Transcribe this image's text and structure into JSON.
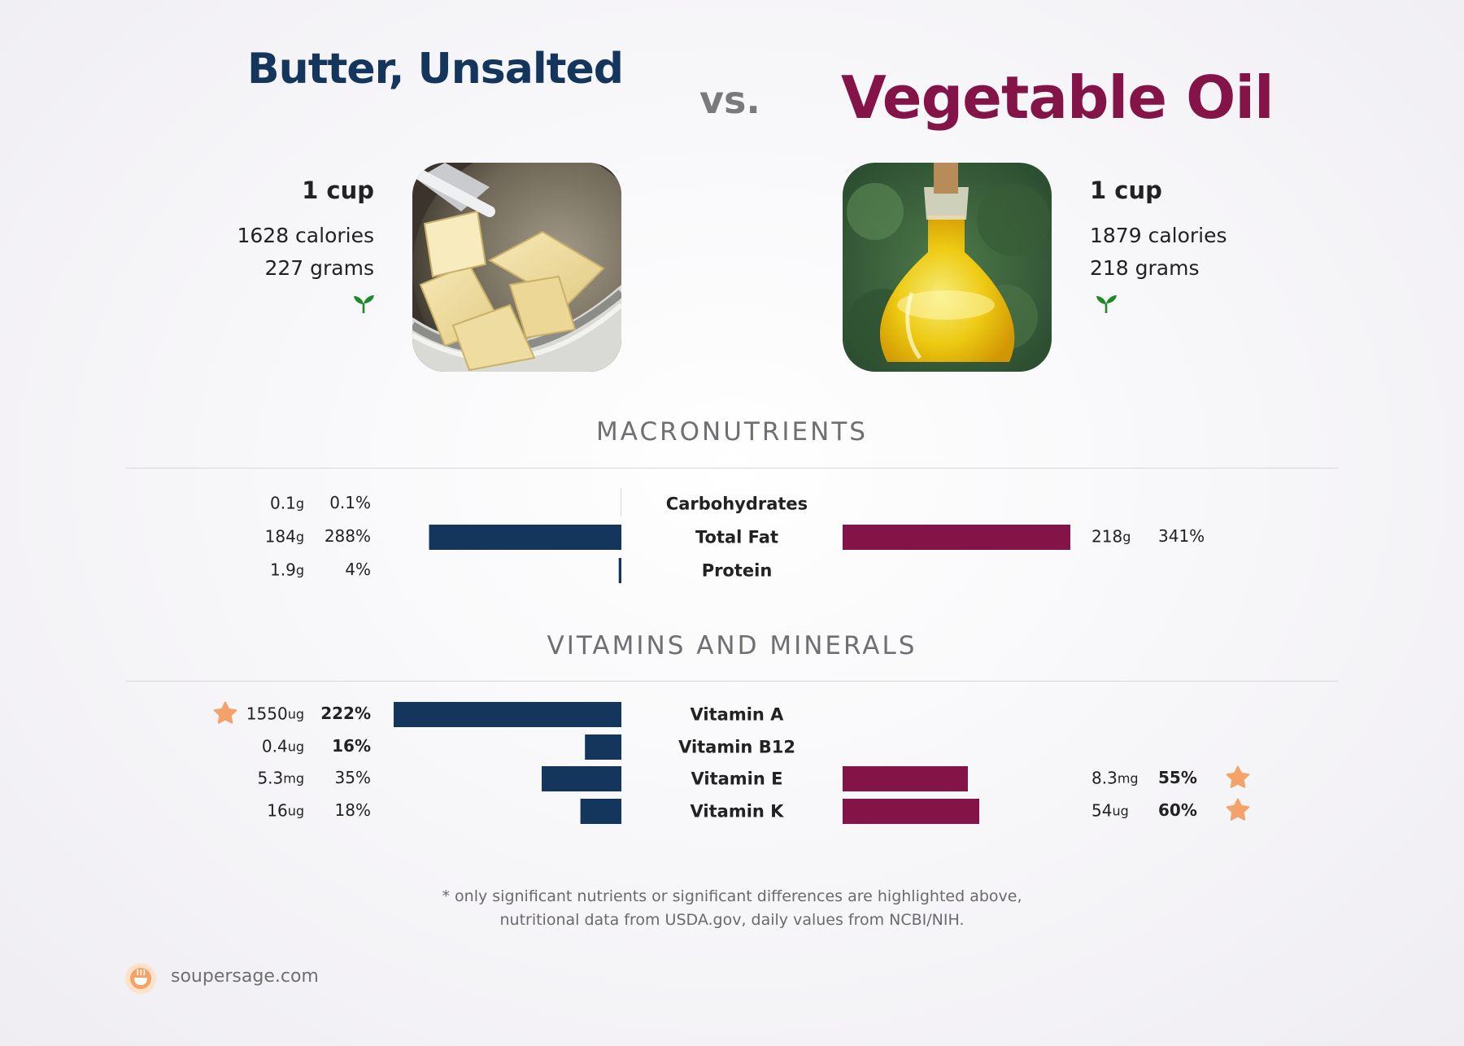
{
  "header": {
    "left_food": "Butter, Unsalted",
    "vs": "vs.",
    "right_food": "Vegetable Oil"
  },
  "left": {
    "serving": "1 cup",
    "calories": "1628 calories",
    "grams": "227 grams",
    "icon": "sprout-icon",
    "photo": "butter-photo"
  },
  "right": {
    "serving": "1 cup",
    "calories": "1879 calories",
    "grams": "218 grams",
    "icon": "sprout-icon",
    "photo": "oil-bottle-photo"
  },
  "sections": {
    "macro": "MACRONUTRIENTS",
    "vitamins": "VITAMINS AND MINERALS"
  },
  "colors": {
    "left": "#14365d",
    "right": "#841448",
    "star": "#f4a26a",
    "leaf": "#1e8a2a"
  },
  "chart_data": [
    {
      "type": "bar",
      "title": "MACRONUTRIENTS",
      "categories": [
        "Carbohydrates",
        "Total Fat",
        "Protein"
      ],
      "series": [
        {
          "name": "Butter, Unsalted",
          "amounts": [
            "0.1",
            "184",
            "1.9"
          ],
          "units": [
            "g",
            "g",
            "g"
          ],
          "percent_labels": [
            "0.1%",
            "288%",
            "4%"
          ],
          "values": [
            0.1,
            288,
            4
          ],
          "bold": [
            false,
            false,
            false
          ],
          "star": [
            false,
            false,
            false
          ]
        },
        {
          "name": "Vegetable Oil",
          "amounts": [
            "",
            "218",
            ""
          ],
          "units": [
            "",
            "g",
            ""
          ],
          "percent_labels": [
            "",
            "341%",
            ""
          ],
          "values": [
            0,
            341,
            0
          ],
          "bold": [
            false,
            false,
            false
          ],
          "star": [
            false,
            false,
            false
          ]
        }
      ],
      "scale_max": 341
    },
    {
      "type": "bar",
      "title": "VITAMINS AND MINERALS",
      "categories": [
        "Vitamin A",
        "Vitamin B12",
        "Vitamin E",
        "Vitamin K"
      ],
      "series": [
        {
          "name": "Butter, Unsalted",
          "amounts": [
            "1550",
            "0.4",
            "5.3",
            "16"
          ],
          "units": [
            "ug",
            "ug",
            "mg",
            "ug"
          ],
          "percent_labels": [
            "222%",
            "16%",
            "35%",
            "18%"
          ],
          "values": [
            222,
            16,
            35,
            18
          ],
          "bold": [
            true,
            true,
            false,
            false
          ],
          "star": [
            true,
            false,
            false,
            false
          ]
        },
        {
          "name": "Vegetable Oil",
          "amounts": [
            "",
            "",
            "8.3",
            "54"
          ],
          "units": [
            "",
            "",
            "mg",
            "ug"
          ],
          "percent_labels": [
            "",
            "",
            "55%",
            "60%"
          ],
          "values": [
            0,
            0,
            55,
            60
          ],
          "bold": [
            false,
            false,
            true,
            true
          ],
          "star": [
            false,
            false,
            true,
            true
          ]
        }
      ],
      "scale_max": 100
    }
  ],
  "footnote": {
    "line1": "* only significant nutrients or significant differences are highlighted above,",
    "line2": "nutritional data from USDA.gov, daily values from NCBI/NIH."
  },
  "brand": {
    "name": "soupersage.com",
    "logo": "soupersage-logo-icon"
  }
}
